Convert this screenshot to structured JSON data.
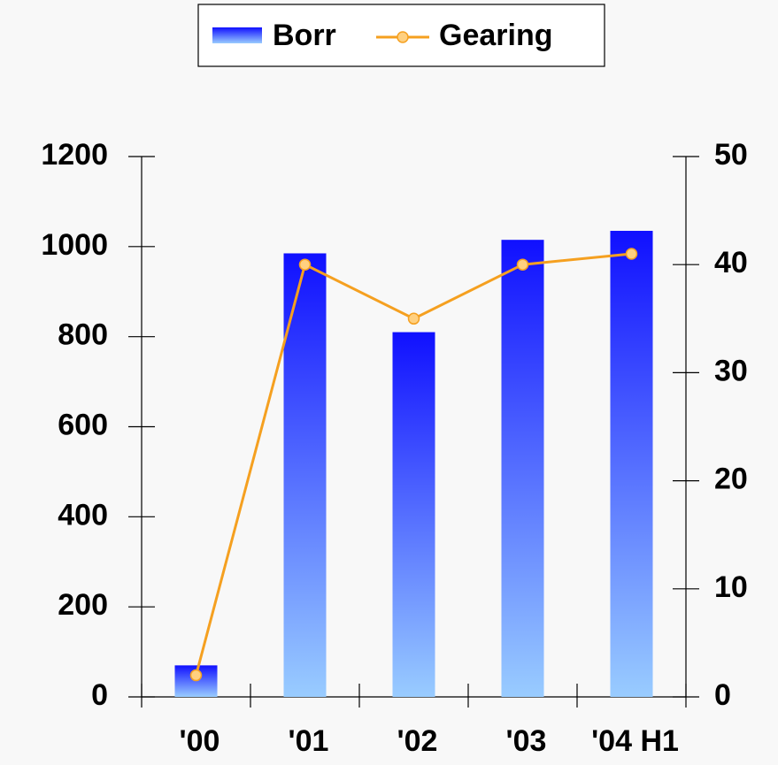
{
  "chart_data": {
    "type": "bar-line",
    "categories": [
      "'00",
      "'01",
      "'02",
      "'03",
      "'04 H1"
    ],
    "series": [
      {
        "name": "Borr",
        "type": "bar",
        "color": "#1010ff",
        "values": [
          70,
          985,
          810,
          1015,
          1035
        ]
      },
      {
        "name": "Gearing",
        "type": "line",
        "axis": "y2",
        "color": "#f5a020",
        "values": [
          2,
          40,
          35,
          40,
          41
        ]
      }
    ],
    "ylim": [
      0,
      1200
    ],
    "yticks": [
      0,
      200,
      400,
      600,
      800,
      1000,
      1200
    ],
    "y2lim": [
      0,
      50
    ],
    "y2ticks": [
      0,
      10,
      20,
      30,
      40,
      50
    ],
    "legend": "top"
  }
}
